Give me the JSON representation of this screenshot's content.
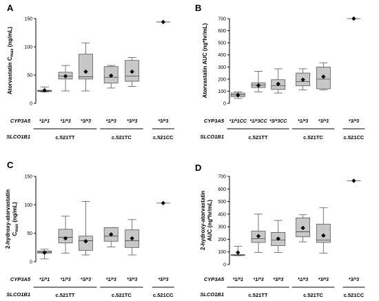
{
  "chart_data": [
    {
      "type": "box",
      "panel": "A",
      "ylabel_main": "Atorvastatin C",
      "ylabel_sub": "max",
      "ylabel_unit": " (ng/mL)",
      "ylim": [
        0,
        150
      ],
      "yticks": [
        0,
        50,
        100,
        150
      ],
      "row1_label": "CYP3A5",
      "row2_label": "SLCO1B1",
      "categories": [
        "*1/*1",
        "*1/*3",
        "*3/*3",
        "*1/*3",
        "*3/*3",
        "*3/*3"
      ],
      "groups": [
        {
          "label": "c.521TT",
          "from": 0,
          "to": 2
        },
        {
          "label": "c.521TC",
          "from": 3,
          "to": 4
        },
        {
          "label": "c.521CC",
          "from": 5,
          "to": 5
        }
      ],
      "boxes": [
        {
          "min": 20,
          "q1": 21,
          "median": 22,
          "q3": 23,
          "max": 29,
          "mean": 23
        },
        {
          "min": 22,
          "q1": 43,
          "median": 48,
          "q3": 55,
          "max": 67,
          "mean": 48
        },
        {
          "min": 22,
          "q1": 43,
          "median": 47,
          "q3": 87,
          "max": 107,
          "mean": 56
        },
        {
          "min": 27,
          "q1": 36,
          "median": 46,
          "q3": 65,
          "max": 67,
          "mean": 49
        },
        {
          "min": 30,
          "q1": 39,
          "median": 48,
          "q3": 76,
          "max": 81,
          "mean": 56
        },
        {
          "min": 144,
          "q1": 144,
          "median": 144,
          "q3": 144,
          "max": 144,
          "mean": 144
        }
      ]
    },
    {
      "type": "box",
      "panel": "B",
      "ylabel_main": "Atorvastatin AUC",
      "ylabel_sub": "",
      "ylabel_unit": " (ng*hr/mL)",
      "ylim": [
        0,
        700
      ],
      "yticks": [
        0,
        100,
        200,
        300,
        400,
        500,
        600,
        700
      ],
      "row1_label": "CYP3A5",
      "row2_label": "SLCO1B1",
      "categories": [
        "*1/*1CC",
        "*1/*3CC",
        "*3/*3CC",
        "*1/*3",
        "*3/*3",
        "*3/*3"
      ],
      "groups": [
        {
          "label": "c.521TT",
          "from": 0,
          "to": 2
        },
        {
          "label": "c.521TC",
          "from": 3,
          "to": 4
        },
        {
          "label": "c.521CC",
          "from": 5,
          "to": 5
        }
      ],
      "boxes": [
        {
          "min": 40,
          "q1": 55,
          "median": 70,
          "q3": 85,
          "max": 95,
          "mean": 68
        },
        {
          "min": 95,
          "q1": 130,
          "median": 150,
          "q3": 170,
          "max": 265,
          "mean": 148
        },
        {
          "min": 85,
          "q1": 115,
          "median": 145,
          "q3": 195,
          "max": 285,
          "mean": 160
        },
        {
          "min": 110,
          "q1": 145,
          "median": 180,
          "q3": 250,
          "max": 285,
          "mean": 195
        },
        {
          "min": 110,
          "q1": 120,
          "median": 200,
          "q3": 300,
          "max": 335,
          "mean": 220
        },
        {
          "min": 700,
          "q1": 700,
          "median": 700,
          "q3": 700,
          "max": 700,
          "mean": 700
        }
      ]
    },
    {
      "type": "box",
      "panel": "C",
      "ylabel_main": "2-hydroxy-atorvastatin",
      "ylabel_line2_main": "C",
      "ylabel_sub": "max",
      "ylabel_unit": " (ng/mL)",
      "ylim": [
        0,
        150
      ],
      "yticks": [
        0,
        50,
        100,
        150
      ],
      "row1_label": "CYP3A5",
      "row2_label": "SLCO1B1",
      "categories": [
        "*1/*1",
        "*1/*3",
        "*3/*3",
        "*1/*3",
        "*3/*3",
        "*3/*3"
      ],
      "groups": [
        {
          "label": "c.521TT",
          "from": 0,
          "to": 2
        },
        {
          "label": "c.521TC",
          "from": 3,
          "to": 4
        },
        {
          "label": "c.521CC",
          "from": 5,
          "to": 5
        }
      ],
      "boxes": [
        {
          "min": 5,
          "q1": 15,
          "median": 17,
          "q3": 19,
          "max": 22,
          "mean": 16
        },
        {
          "min": 15,
          "q1": 33,
          "median": 43,
          "q3": 57,
          "max": 80,
          "mean": 41
        },
        {
          "min": 12,
          "q1": 20,
          "median": 37,
          "q3": 45,
          "max": 106,
          "mean": 36
        },
        {
          "min": 26,
          "q1": 36,
          "median": 45,
          "q3": 60,
          "max": 60,
          "mean": 48
        },
        {
          "min": 12,
          "q1": 25,
          "median": 37,
          "q3": 56,
          "max": 74,
          "mean": 41
        },
        {
          "min": 103,
          "q1": 103,
          "median": 103,
          "q3": 103,
          "max": 103,
          "mean": 103
        }
      ]
    },
    {
      "type": "box",
      "panel": "D",
      "ylabel_main": "2-hydroxy-atorvastatin",
      "ylabel_line2_main": "AUC (ng*hr/mL)",
      "ylabel_sub": "",
      "ylabel_unit": "",
      "ylim": [
        0,
        700
      ],
      "yticks": [
        0,
        100,
        200,
        300,
        400,
        500,
        600,
        700
      ],
      "row1_label": "CYP3A5",
      "row2_label": "SLCO1B1",
      "categories": [
        "*1/*1",
        "*1/*3",
        "*3/*3",
        "*1/*3",
        "*3/*3",
        "*3/*3"
      ],
      "groups": [
        {
          "label": "c.521TT",
          "from": 0,
          "to": 2
        },
        {
          "label": "c.521TC",
          "from": 3,
          "to": 4
        },
        {
          "label": "c.521CC",
          "from": 5,
          "to": 5
        }
      ],
      "boxes": [
        {
          "min": 70,
          "q1": 72,
          "median": 75,
          "q3": 78,
          "max": 145,
          "mean": 95
        },
        {
          "min": 95,
          "q1": 175,
          "median": 205,
          "q3": 265,
          "max": 400,
          "mean": 225
        },
        {
          "min": 95,
          "q1": 150,
          "median": 195,
          "q3": 255,
          "max": 350,
          "mean": 205
        },
        {
          "min": 180,
          "q1": 220,
          "median": 260,
          "q3": 370,
          "max": 395,
          "mean": 290
        },
        {
          "min": 90,
          "q1": 175,
          "median": 195,
          "q3": 320,
          "max": 450,
          "mean": 230
        },
        {
          "min": 665,
          "q1": 665,
          "median": 665,
          "q3": 665,
          "max": 665,
          "mean": 665
        }
      ]
    }
  ]
}
